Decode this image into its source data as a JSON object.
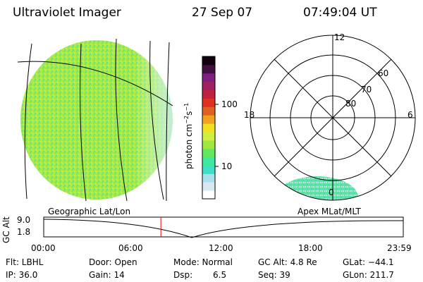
{
  "header": {
    "title": "Ultraviolet Imager",
    "date": "27 Sep 07",
    "time": "07:49:04 UT"
  },
  "colorbar": {
    "unit_label": "photon cm",
    "unit_sup1": "−2",
    "unit_mid": "s",
    "unit_sup2": "−1",
    "ticks": [
      "100",
      "10"
    ],
    "colors": [
      "#ffffff",
      "#d8e8f0",
      "#a8e0ec",
      "#40e0c8",
      "#40e8a0",
      "#60e860",
      "#a0e840",
      "#d0f040",
      "#f0e020",
      "#f0a020",
      "#e06020",
      "#e03020",
      "#c02040",
      "#a02060",
      "#802080",
      "#401040",
      "#100010"
    ]
  },
  "polar": {
    "mlt_labels": [
      "12",
      "18",
      "6",
      "0"
    ],
    "lat_labels": [
      "60",
      "70",
      "80"
    ]
  },
  "panels": {
    "geo_label": "Geographic Lat/Lon",
    "apex_label": "Apex MLat/MLT"
  },
  "altitude_plot": {
    "ylabel": "GC Alt",
    "yticks": [
      "9.0",
      "1.8"
    ],
    "xticks": [
      "00:00",
      "06:00",
      "12:00",
      "18:00",
      "23:59"
    ],
    "current_time_hours": 7.82,
    "marker_color": "#ff0000"
  },
  "info": {
    "flt": "Flt: LBHL",
    "ip": "IP: 36.0",
    "door": "Door: Open",
    "gain": "Gain: 14",
    "mode": "Mode: Normal",
    "dsp_label": "Dsp:",
    "dsp_value": "6.5",
    "gc_alt": "GC Alt: 4.8 Re",
    "seq": "Seq: 39",
    "glat": "GLat: −44.1",
    "glon": "GLon: 211.7"
  }
}
